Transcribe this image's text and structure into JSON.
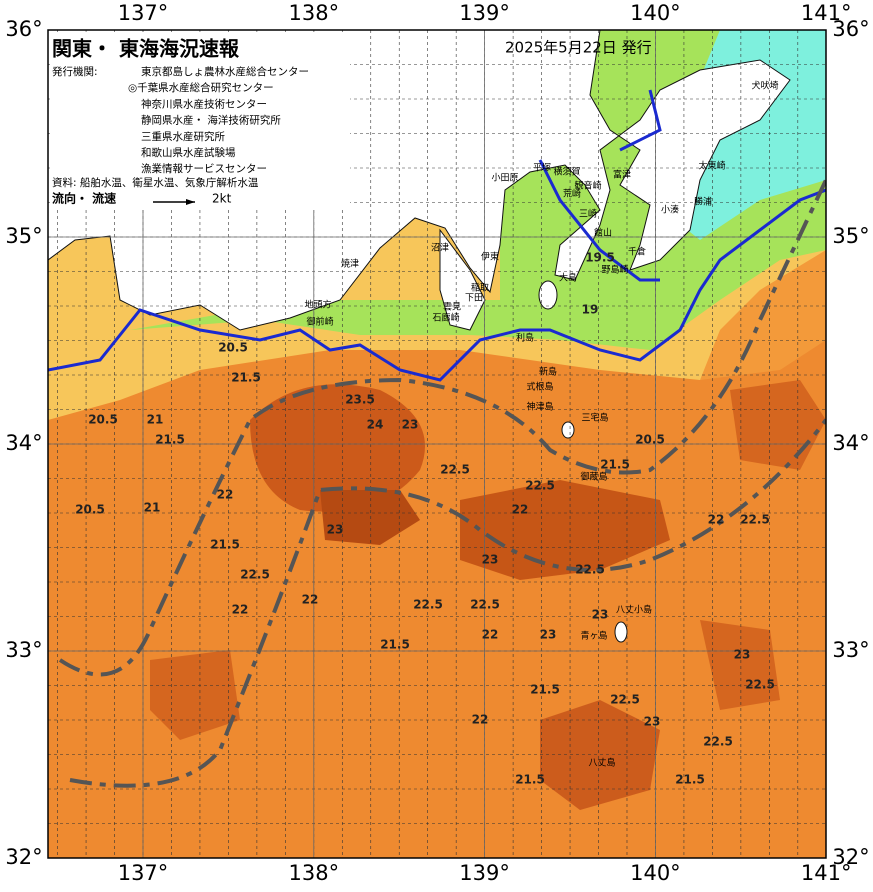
{
  "map": {
    "title": "関東・ 東海海況速報",
    "issued": "2025年5月22日 発行",
    "agency_label": "発行機関:",
    "agencies": [
      "東京都島しょ農林水産総合センター",
      "◎千葉県水産総合研究センター",
      "神奈川県水産技術センター",
      "静岡県水産・ 海洋技術研究所",
      "三重県水産研究所",
      "和歌山県水産試験場",
      "漁業情報サービスセンター"
    ],
    "source": "資料: 船舶水温、衛星水温、気象庁解析水温",
    "flow_label": "流向・ 流速",
    "flow_scale": "2kt",
    "lon_ticks": [
      {
        "value": 137,
        "label": "137°"
      },
      {
        "value": 138,
        "label": "138°"
      },
      {
        "value": 139,
        "label": "139°"
      },
      {
        "value": 140,
        "label": "140°"
      },
      {
        "value": 141,
        "label": "141°"
      }
    ],
    "lat_ticks": [
      {
        "value": 36,
        "label": "36°"
      },
      {
        "value": 35,
        "label": "35°"
      },
      {
        "value": 34,
        "label": "34°"
      },
      {
        "value": 33,
        "label": "33°"
      },
      {
        "value": 32,
        "label": "32°"
      }
    ],
    "places": [
      "焼津",
      "沼津",
      "伊東",
      "稲取",
      "下田",
      "雲見",
      "石廊崎",
      "地頭方",
      "御前崎",
      "小田原",
      "平塚",
      "横須賀",
      "観音崎",
      "荒崎",
      "三崎",
      "富津",
      "館山",
      "千倉",
      "野島崎",
      "犬吠埼",
      "太東崎",
      "勝浦",
      "小湊",
      "大島",
      "利島",
      "新島",
      "式根島",
      "神津島",
      "三宅島",
      "御蔵島",
      "八丈島",
      "八丈小島",
      "青ヶ島"
    ],
    "contours": [
      20.5,
      21,
      21.5,
      20.5,
      22,
      21,
      21.5,
      22,
      22.5,
      23,
      23.5,
      24,
      23,
      22.5,
      22,
      21.5,
      22.5,
      23,
      22.5,
      22,
      21.5,
      22.5,
      23,
      22.5,
      22,
      21.5,
      23,
      22.5,
      22,
      23,
      21.5,
      22.5,
      19.5,
      19,
      20.5,
      20.5,
      21.5,
      22.5,
      23,
      22,
      21.5,
      22.5
    ]
  }
}
